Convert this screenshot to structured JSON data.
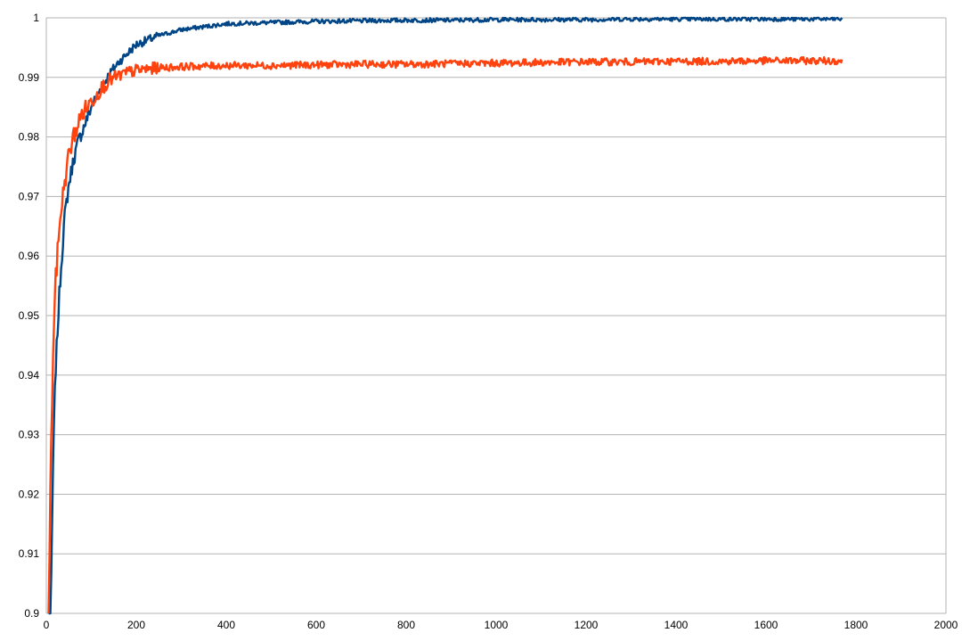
{
  "chart_data": {
    "type": "line",
    "title": "",
    "xlabel": "",
    "ylabel": "",
    "xlim": [
      0,
      2000
    ],
    "ylim": [
      0.9,
      1.0
    ],
    "x_ticks": [
      0,
      200,
      400,
      600,
      800,
      1000,
      1200,
      1400,
      1600,
      1800,
      2000
    ],
    "x_tick_labels": [
      "0",
      "200",
      "400",
      "600",
      "800",
      "1000",
      "1200",
      "1400",
      "1600",
      "1800",
      "2000"
    ],
    "y_ticks": [
      0.9,
      0.91,
      0.92,
      0.93,
      0.94,
      0.95,
      0.96,
      0.97,
      0.98,
      0.99,
      1.0
    ],
    "y_tick_labels": [
      "0.9",
      "0.91",
      "0.92",
      "0.93",
      "0.94",
      "0.95",
      "0.96",
      "0.97",
      "0.98",
      "0.99",
      "1"
    ],
    "grid": "horizontal",
    "legend": "none",
    "series": [
      {
        "color": "#004586",
        "x": [
          5,
          10,
          15,
          20,
          30,
          40,
          50,
          60,
          70,
          80,
          90,
          100,
          120,
          140,
          160,
          180,
          200,
          250,
          300,
          350,
          400,
          450,
          500,
          600,
          700,
          800,
          900,
          1000,
          1100,
          1200,
          1300,
          1400,
          1500,
          1600,
          1700,
          1770
        ],
        "y": [
          0.888,
          0.9,
          0.925,
          0.94,
          0.955,
          0.966,
          0.972,
          0.976,
          0.979,
          0.981,
          0.983,
          0.985,
          0.988,
          0.9905,
          0.9925,
          0.994,
          0.9955,
          0.997,
          0.998,
          0.9985,
          0.999,
          0.9991,
          0.9992,
          0.9994,
          0.9995,
          0.9996,
          0.9996,
          0.9997,
          0.9997,
          0.9997,
          0.9998,
          0.9998,
          0.9998,
          0.9998,
          0.9998,
          0.9998
        ]
      },
      {
        "color": "#ff420e",
        "x": [
          5,
          10,
          15,
          20,
          30,
          40,
          50,
          60,
          70,
          80,
          90,
          100,
          120,
          140,
          160,
          180,
          200,
          250,
          300,
          350,
          400,
          450,
          500,
          600,
          700,
          800,
          900,
          1000,
          1100,
          1200,
          1300,
          1400,
          1500,
          1600,
          1700,
          1770
        ],
        "y": [
          0.9,
          0.925,
          0.944,
          0.955,
          0.966,
          0.972,
          0.977,
          0.98,
          0.982,
          0.984,
          0.985,
          0.986,
          0.988,
          0.9895,
          0.9902,
          0.9908,
          0.9912,
          0.9916,
          0.9918,
          0.9919,
          0.992,
          0.992,
          0.992,
          0.9921,
          0.9922,
          0.9922,
          0.9923,
          0.9924,
          0.9925,
          0.9926,
          0.9926,
          0.9927,
          0.9927,
          0.9928,
          0.9928,
          0.9928
        ]
      }
    ]
  }
}
